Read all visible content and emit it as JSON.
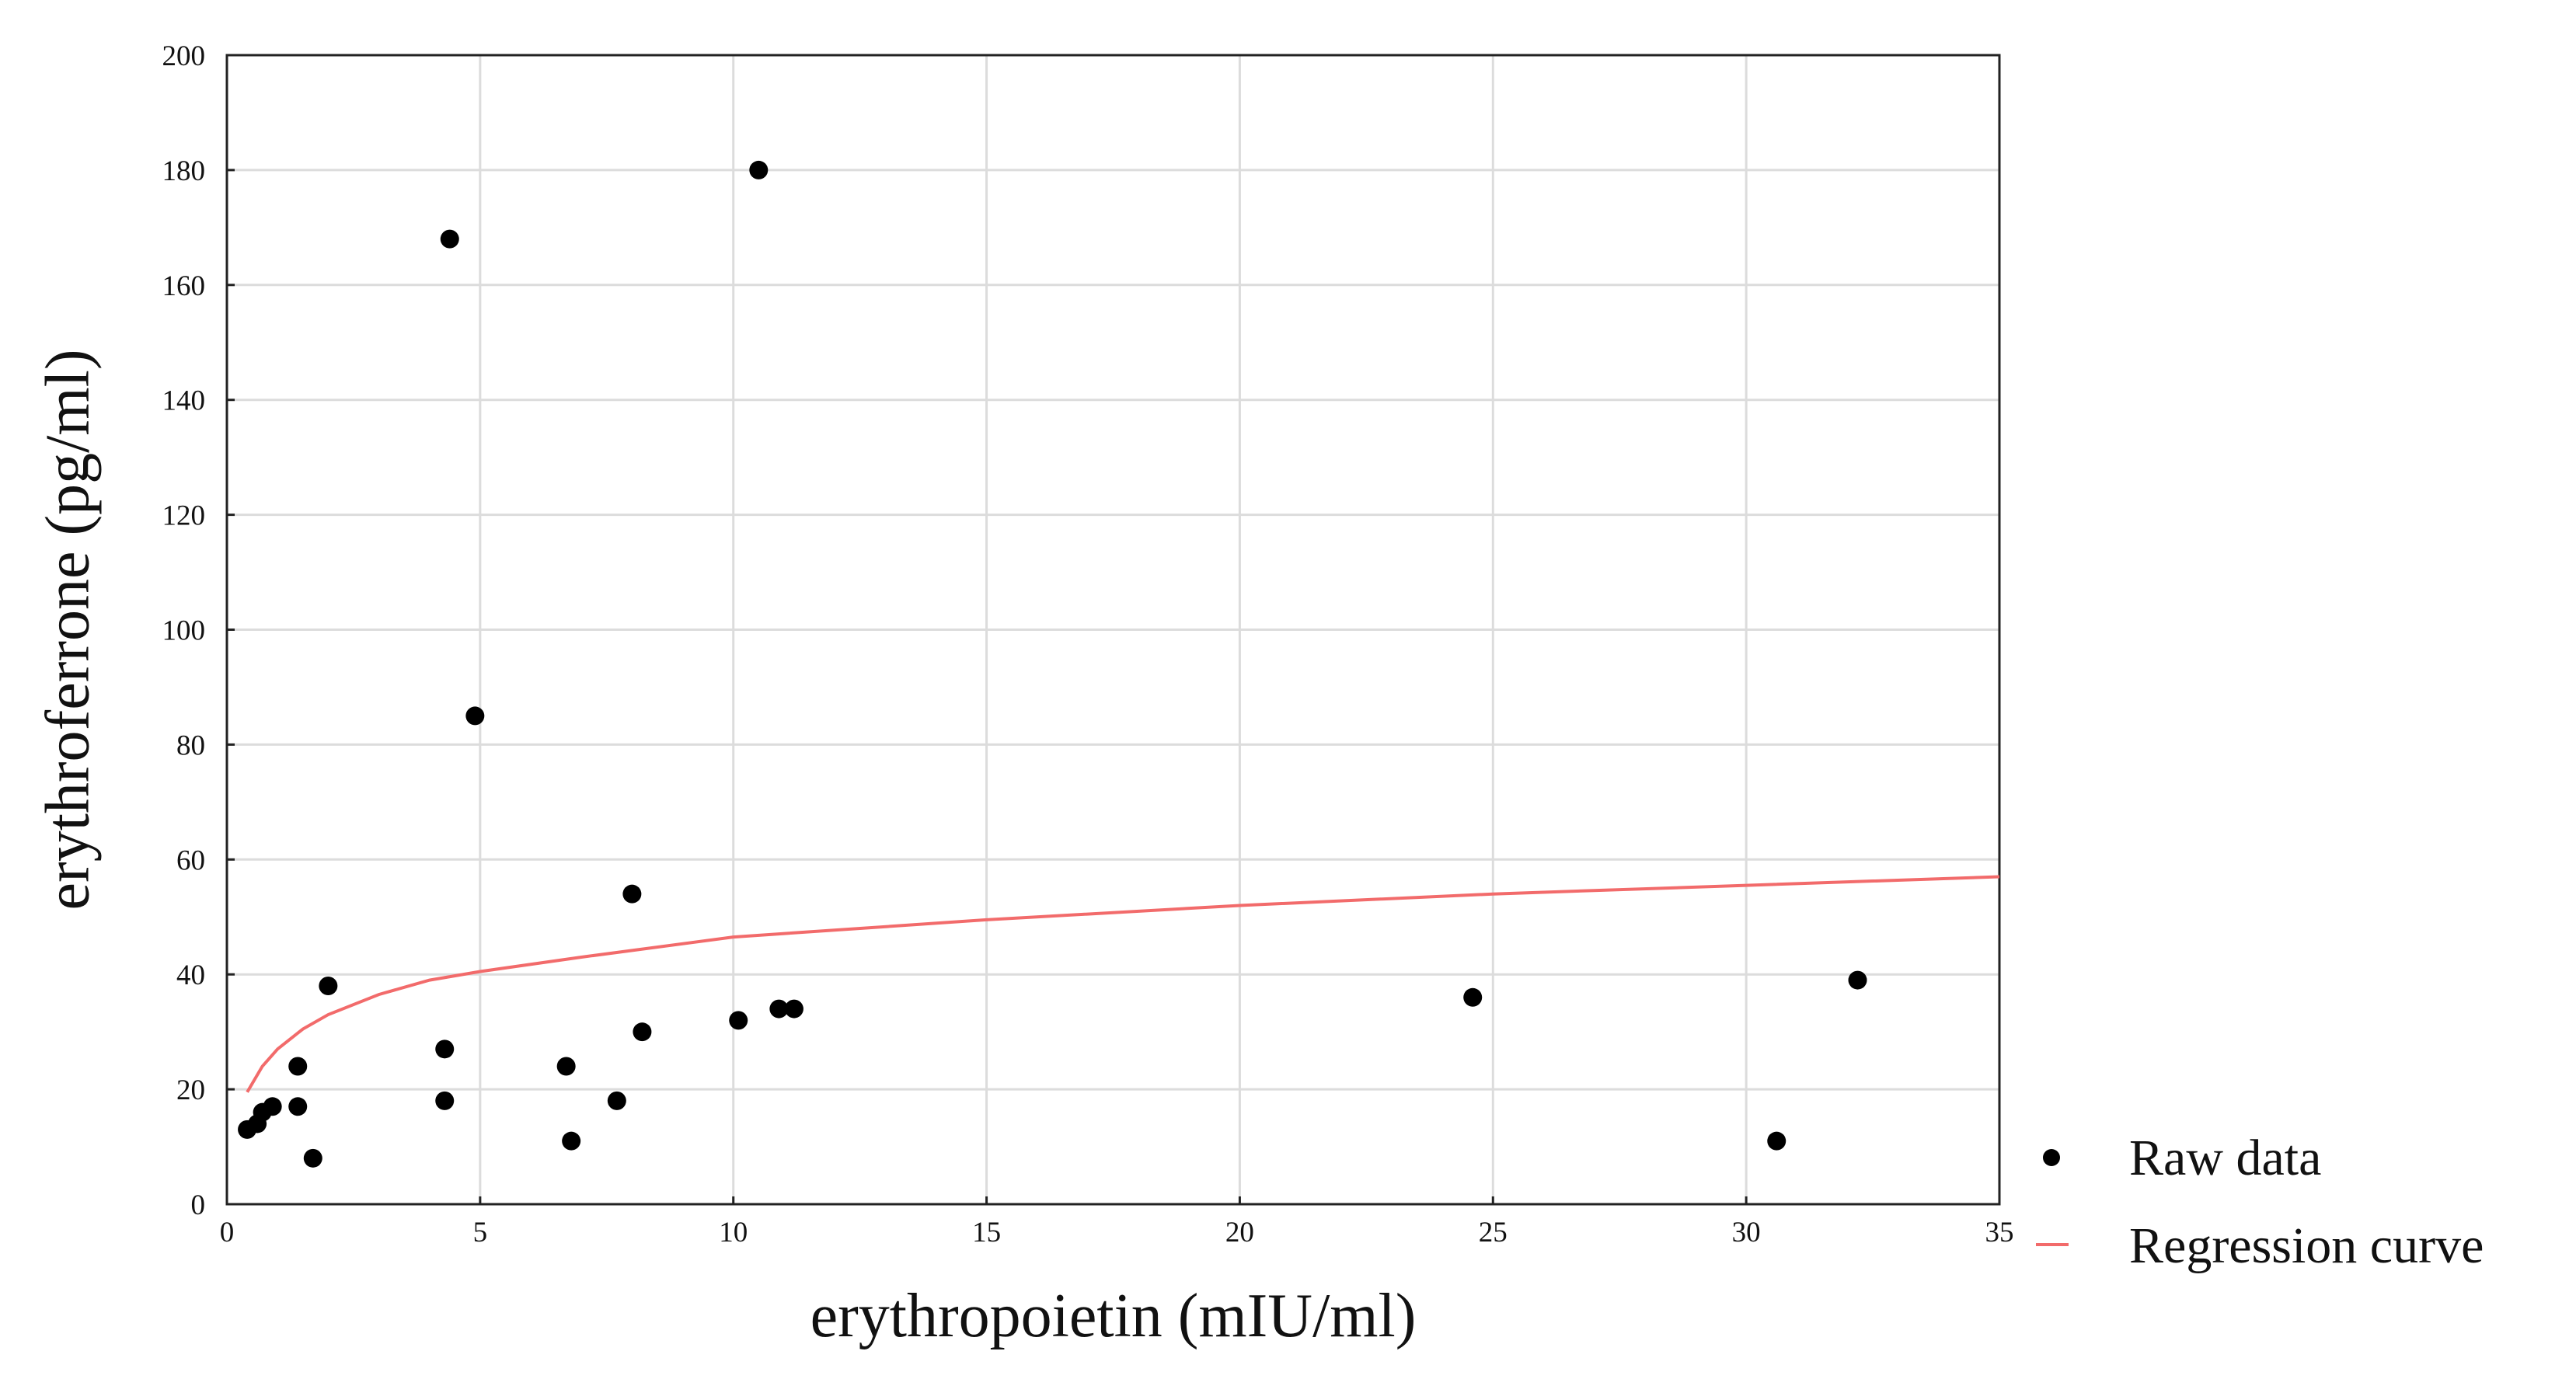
{
  "chart_data": {
    "type": "scatter",
    "xlabel": "erythropoietin (mIU/ml)",
    "ylabel": "erythroferrone (pg/ml)",
    "xlim": [
      0,
      35
    ],
    "ylim": [
      0,
      200
    ],
    "xticks": [
      0,
      5,
      10,
      15,
      20,
      25,
      30,
      35
    ],
    "yticks": [
      0,
      20,
      40,
      60,
      80,
      100,
      120,
      140,
      160,
      180,
      200
    ],
    "grid": true,
    "legend_position": "bottom-right, outside plot",
    "series": [
      {
        "name": "Raw data",
        "kind": "scatter",
        "color": "#000000",
        "points": [
          [
            0.4,
            13
          ],
          [
            0.6,
            14
          ],
          [
            0.7,
            16
          ],
          [
            0.9,
            17
          ],
          [
            1.4,
            24
          ],
          [
            1.4,
            17
          ],
          [
            1.7,
            8
          ],
          [
            2.0,
            38
          ],
          [
            4.3,
            27
          ],
          [
            4.3,
            18
          ],
          [
            4.4,
            168
          ],
          [
            4.9,
            85
          ],
          [
            6.7,
            24
          ],
          [
            6.8,
            11
          ],
          [
            7.7,
            18
          ],
          [
            8.0,
            54
          ],
          [
            8.2,
            30
          ],
          [
            10.1,
            32
          ],
          [
            10.5,
            180
          ],
          [
            10.9,
            34
          ],
          [
            11.2,
            34
          ],
          [
            24.6,
            36
          ],
          [
            30.6,
            11
          ],
          [
            32.2,
            39
          ]
        ]
      },
      {
        "name": "Regression curve",
        "kind": "line",
        "color": "#f26b6b",
        "points": [
          [
            0.4,
            19.5
          ],
          [
            0.7,
            24
          ],
          [
            1,
            27
          ],
          [
            1.5,
            30.5
          ],
          [
            2,
            33
          ],
          [
            3,
            36.5
          ],
          [
            4,
            39
          ],
          [
            5,
            40.5
          ],
          [
            7,
            43
          ],
          [
            10,
            46.5
          ],
          [
            15,
            49.5
          ],
          [
            20,
            52
          ],
          [
            25,
            54
          ],
          [
            30,
            55.5
          ],
          [
            35,
            57
          ]
        ]
      }
    ]
  }
}
